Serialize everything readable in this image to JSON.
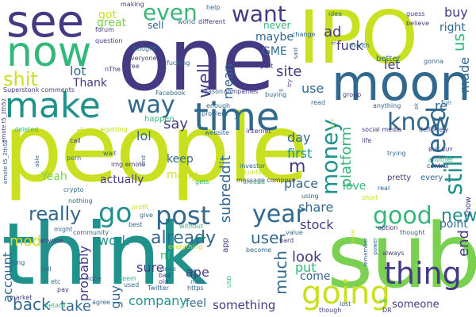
{
  "words": {
    "people": "people",
    "think": "think",
    "sub": "sub",
    "one": "one",
    "ipo": "IPO",
    "moon": "moon",
    "see": "see",
    "now": "now",
    "make": "make",
    "time": "time",
    "going": "going",
    "thing": "thing",
    "post": "post",
    "year": "year",
    "way": "way",
    "know": "know",
    "need": "need",
    "money": "money",
    "good": "good",
    "go": "go",
    "really": "really",
    "want": "want",
    "even": "even",
    "shit": "shit",
    "still": "still",
    "already": "already",
    "well": "well",
    "user": "user",
    "new": "new",
    "us": "us",
    "let": "let",
    "made": "made",
    "buy": "buy",
    "fuck": "fuck",
    "got": "got",
    "ad": "ad",
    "lot": "lot",
    "site": "site",
    "mean": "mean",
    "say": "say",
    "lol": "lol",
    "thank": "Thank",
    "dont": "don t",
    "keep": "keep",
    "many": "many",
    "actually": "actually",
    "subreddit": "subreddit",
    "platform": "platform",
    "first": "first",
    "day": "day",
    "m": "m",
    "share": "share",
    "stock": "stock",
    "place": "place",
    "love": "love",
    "look": "look",
    "put": "put",
    "come": "come",
    "much": "much",
    "account": "account",
    "back": "back",
    "take": "take",
    "mod": "mod",
    "work": "work",
    "company": "company",
    "feel": "feel",
    "something": "something",
    "someone": "someone",
    "sure": "sure",
    "ape": "ape",
    "ni": "nI",
    "point": "point",
    "end": "end",
    "re": "re",
    "better": "better",
    "maybe": "maybe",
    "gme": "GME",
    "great": "great",
    "sell": "sell",
    "never": "never",
    "yeah": "Yeah",
    "happen": "happen",
    "use": "use",
    "right": "right",
    "probably": "probably",
    "guy": "guy",
    "every": "every",
    "pretty": "pretty",
    "show": "show",
    "social_media": "social media",
    "superstonk": "Superstonk comments",
    "emote_a": "emote t5_2th52",
    "emote_b": "emote t5_2th52",
    "deleted": "deleted",
    "facebook": "Facebook",
    "companies": "companies",
    "reason": "reason",
    "problem": "problem",
    "website": "website",
    "internet": "internet",
    "message_compose": "message compose",
    "investor": "investor",
    "content": "content",
    "around": "around",
    "gets": "gets",
    "img_emote": "img emote",
    "crypto": "crypto",
    "nothing": "nothing",
    "porn": "porn",
    "wait": "wait",
    "call": "call",
    "able": "able",
    "might": "might",
    "anyone": "anyone",
    "community": "community",
    "without": "without",
    "everything": "everything",
    "app": "app",
    "hard": "hard",
    "become": "become",
    "value": "value",
    "thought": "thought",
    "power": "power",
    "always": "always",
    "remember": "remember",
    "using": "using",
    "price": "price",
    "though": "though",
    "lost": "lost",
    "dr": "DR",
    "ve": "ve",
    "twitter": "Twitter",
    "https": "https",
    "next": "next",
    "old": "old",
    "used": "used",
    "seem": "seem",
    "done": "done",
    "hope": "hope",
    "agree": "agree",
    "retard": "retard",
    "pay": "pay",
    "etc": "etc",
    "market": "market",
    "long": "long",
    "tell": "tell",
    "making": "making",
    "world": "world",
    "different": "different",
    "help": "help",
    "idea": "idea",
    "guess": "guess",
    "believe": "believe",
    "month": "month",
    "change": "change",
    "forum": "forum",
    "question": "question",
    "everyone": "everyone",
    "free": "free",
    "nthe": "nThe",
    "fucking": "fucking",
    "bought": "bought",
    "buying": "buying",
    "part": "part",
    "said": "said",
    "enough": "enough",
    "group": "group",
    "anything": "anything",
    "read": "read",
    "fun": "fun",
    "gonna": "gonna",
    "definitely": "definitely",
    "life": "life",
    "trying": "trying",
    "buy_buy": "BUY BUY",
    "another": "another",
    "control": "control",
    "real": "real",
    "short": "short",
    "option": "option",
    "give": "give",
    "profit": "profit",
    "best": "best",
    "getting": "getting",
    "find": "find",
    "big": "big",
    "bad": "bad",
    "usd": "USD",
    "try": "try",
    "ll": "ll",
    "ok": "ok",
    "yes": "yes",
    "lt": "lt"
  },
  "colors": {
    "yellow": "#c8e020",
    "lime": "#7ad151",
    "green": "#35b779",
    "teal": "#21918c",
    "blue": "#31688e",
    "indigo": "#443983",
    "purple": "#440154"
  }
}
